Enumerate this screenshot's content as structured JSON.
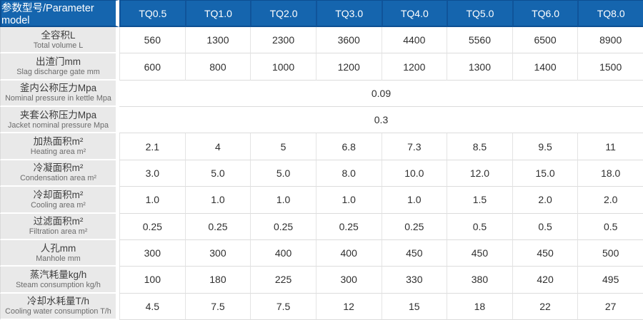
{
  "table": {
    "header": {
      "param_label": "参数型号/Parameter model",
      "models": [
        "TQ0.5",
        "TQ1.0",
        "TQ2.0",
        "TQ3.0",
        "TQ4.0",
        "TQ5.0",
        "TQ6.0",
        "TQ8.0"
      ]
    },
    "rows": [
      {
        "zh": "全容积L",
        "en": "Total volume L",
        "values": [
          "560",
          "1300",
          "2300",
          "3600",
          "4400",
          "5560",
          "6500",
          "8900"
        ]
      },
      {
        "zh": "出渣门mm",
        "en": "Slag discharge gate mm",
        "values": [
          "600",
          "800",
          "1000",
          "1200",
          "1200",
          "1300",
          "1400",
          "1500"
        ]
      },
      {
        "zh": "釜内公称压力Mpa",
        "en": "Nominal pressure in kettle Mpa",
        "merged": "0.09"
      },
      {
        "zh": "夹套公称压力Mpa",
        "en": "Jacket nominal pressure Mpa",
        "merged": "0.3"
      },
      {
        "zh": "加热面积m²",
        "en": "Heating area m²",
        "values": [
          "2.1",
          "4",
          "5",
          "6.8",
          "7.3",
          "8.5",
          "9.5",
          "11"
        ]
      },
      {
        "zh": "冷凝面积m²",
        "en": "Condensation area m²",
        "values": [
          "3.0",
          "5.0",
          "5.0",
          "8.0",
          "10.0",
          "12.0",
          "15.0",
          "18.0"
        ]
      },
      {
        "zh": "冷却面积m²",
        "en": "Cooling area m²",
        "values": [
          "1.0",
          "1.0",
          "1.0",
          "1.0",
          "1.0",
          "1.5",
          "2.0",
          "2.0"
        ]
      },
      {
        "zh": "过滤面积m²",
        "en": "Filtration area m²",
        "values": [
          "0.25",
          "0.25",
          "0.25",
          "0.25",
          "0.25",
          "0.5",
          "0.5",
          "0.5"
        ]
      },
      {
        "zh": "人孔mm",
        "en": "Manhole mm",
        "values": [
          "300",
          "300",
          "400",
          "400",
          "450",
          "450",
          "450",
          "500"
        ]
      },
      {
        "zh": "蒸汽耗量kg/h",
        "en": "Steam consumption kg/h",
        "values": [
          "100",
          "180",
          "225",
          "300",
          "330",
          "380",
          "420",
          "495"
        ]
      },
      {
        "zh": "冷却水耗量T/h",
        "en": "Cooling water consumption T/h",
        "values": [
          "4.5",
          "7.5",
          "7.5",
          "12",
          "15",
          "18",
          "22",
          "27"
        ]
      }
    ],
    "colors": {
      "header_bg": "#1565ae",
      "header_text": "#ffffff",
      "header_separator": "#10549a",
      "label_bg": "#e9e9e9",
      "grid_line": "#dcdcdc",
      "data_text": "#2f2f2f",
      "label_text": "#3d3d3d",
      "sublabel_text": "#6b6b6b"
    }
  },
  "chart_data": {
    "type": "table",
    "title": "参数型号/Parameter model",
    "columns": [
      "参数型号/Parameter model",
      "TQ0.5",
      "TQ1.0",
      "TQ2.0",
      "TQ3.0",
      "TQ4.0",
      "TQ5.0",
      "TQ6.0",
      "TQ8.0"
    ],
    "rows": [
      {
        "parameter": "全容积L (Total volume L)",
        "values": [
          560,
          1300,
          2300,
          3600,
          4400,
          5560,
          6500,
          8900
        ]
      },
      {
        "parameter": "出渣门mm (Slag discharge gate mm)",
        "values": [
          600,
          800,
          1000,
          1200,
          1200,
          1300,
          1400,
          1500
        ]
      },
      {
        "parameter": "釜内公称压力Mpa (Nominal pressure in kettle Mpa)",
        "values": [
          0.09
        ],
        "merged_across_all_models": true
      },
      {
        "parameter": "夹套公称压力Mpa (Jacket nominal pressure Mpa)",
        "values": [
          0.3
        ],
        "merged_across_all_models": true
      },
      {
        "parameter": "加热面积m² (Heating area m²)",
        "values": [
          2.1,
          4,
          5,
          6.8,
          7.3,
          8.5,
          9.5,
          11
        ]
      },
      {
        "parameter": "冷凝面积m² (Condensation area m²)",
        "values": [
          3.0,
          5.0,
          5.0,
          8.0,
          10.0,
          12.0,
          15.0,
          18.0
        ]
      },
      {
        "parameter": "冷却面积m² (Cooling area m²)",
        "values": [
          1.0,
          1.0,
          1.0,
          1.0,
          1.0,
          1.5,
          2.0,
          2.0
        ]
      },
      {
        "parameter": "过滤面积m² (Filtration area m²)",
        "values": [
          0.25,
          0.25,
          0.25,
          0.25,
          0.25,
          0.5,
          0.5,
          0.5
        ]
      },
      {
        "parameter": "人孔mm (Manhole mm)",
        "values": [
          300,
          300,
          400,
          400,
          450,
          450,
          450,
          500
        ]
      },
      {
        "parameter": "蒸汽耗量kg/h (Steam consumption kg/h)",
        "values": [
          100,
          180,
          225,
          300,
          330,
          380,
          420,
          495
        ]
      },
      {
        "parameter": "冷却水耗量T/h (Cooling water consumption T/h)",
        "values": [
          4.5,
          7.5,
          7.5,
          12,
          15,
          18,
          22,
          27
        ]
      }
    ],
    "layout": {
      "header_position": "top",
      "row_label_column": "left",
      "grid": true
    }
  }
}
